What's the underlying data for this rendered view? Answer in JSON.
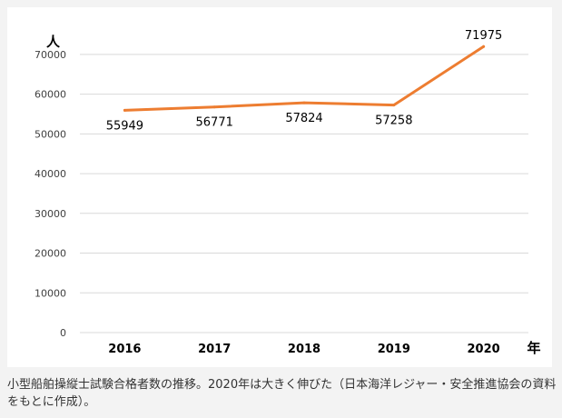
{
  "caption": "小型船舶操縦士試験合格者数の推移。2020年は大きく伸びた（日本海洋レジャー・安全推進協会の資料をもとに作成）。",
  "colors": {
    "line": "#ed7d31",
    "grid": "#d9d9d9",
    "text": "#000000",
    "tick_text": "#404040",
    "background": "#ffffff"
  },
  "chart_data": {
    "type": "line",
    "title": "",
    "ylabel": "人",
    "xlabel": "年",
    "categories": [
      "2016",
      "2017",
      "2018",
      "2019",
      "2020"
    ],
    "series": [
      {
        "values": [
          55949,
          56771,
          57824,
          57258,
          71975
        ]
      }
    ],
    "ylim": [
      0,
      75000
    ],
    "yticks": [
      0,
      10000,
      20000,
      30000,
      40000,
      50000,
      60000,
      70000
    ],
    "grid": true,
    "legend": "none",
    "data_labels": true
  }
}
